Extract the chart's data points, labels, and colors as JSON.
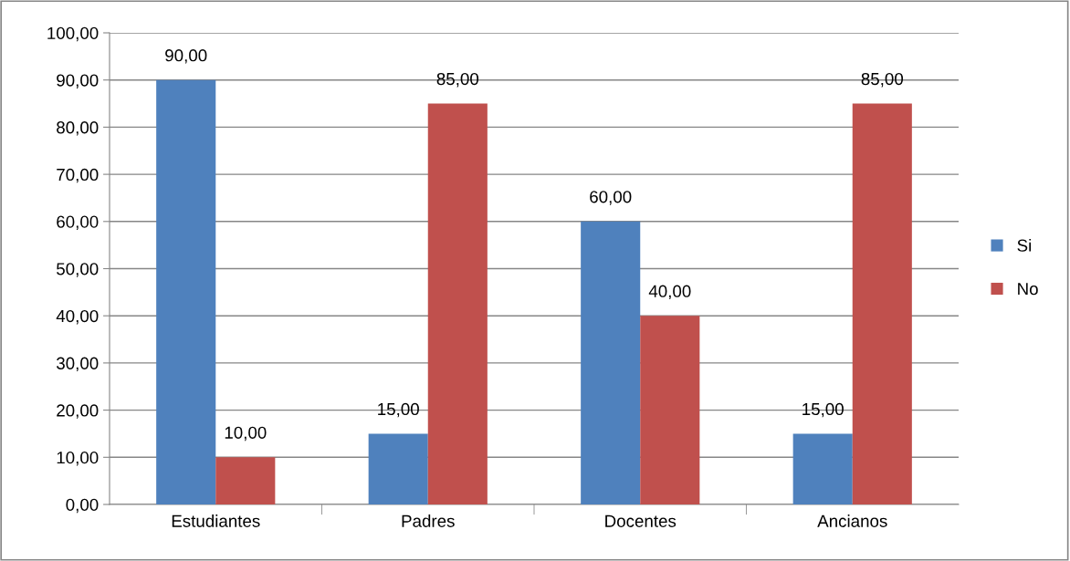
{
  "chart_data": {
    "type": "bar",
    "categories": [
      "Estudiantes",
      "Padres",
      "Docentes",
      "Ancianos"
    ],
    "series": [
      {
        "name": "Si",
        "color": "#4f81bd",
        "values": [
          90,
          15,
          60,
          15
        ],
        "value_labels": [
          "90,00",
          "15,00",
          "60,00",
          "15,00"
        ]
      },
      {
        "name": "No",
        "color": "#c0504d",
        "values": [
          10,
          85,
          40,
          85
        ],
        "value_labels": [
          "10,00",
          "85,00",
          "40,00",
          "85,00"
        ]
      }
    ],
    "ylim": [
      0,
      100
    ],
    "yticks": [
      {
        "value": 0,
        "label": "0,00"
      },
      {
        "value": 10,
        "label": "10,00"
      },
      {
        "value": 20,
        "label": "20,00"
      },
      {
        "value": 30,
        "label": "30,00"
      },
      {
        "value": 40,
        "label": "40,00"
      },
      {
        "value": 50,
        "label": "50,00"
      },
      {
        "value": 60,
        "label": "60,00"
      },
      {
        "value": 70,
        "label": "70,00"
      },
      {
        "value": 80,
        "label": "80,00"
      },
      {
        "value": 90,
        "label": "90,00"
      },
      {
        "value": 100,
        "label": "100,00"
      }
    ],
    "grid": "y",
    "legend": "right"
  }
}
